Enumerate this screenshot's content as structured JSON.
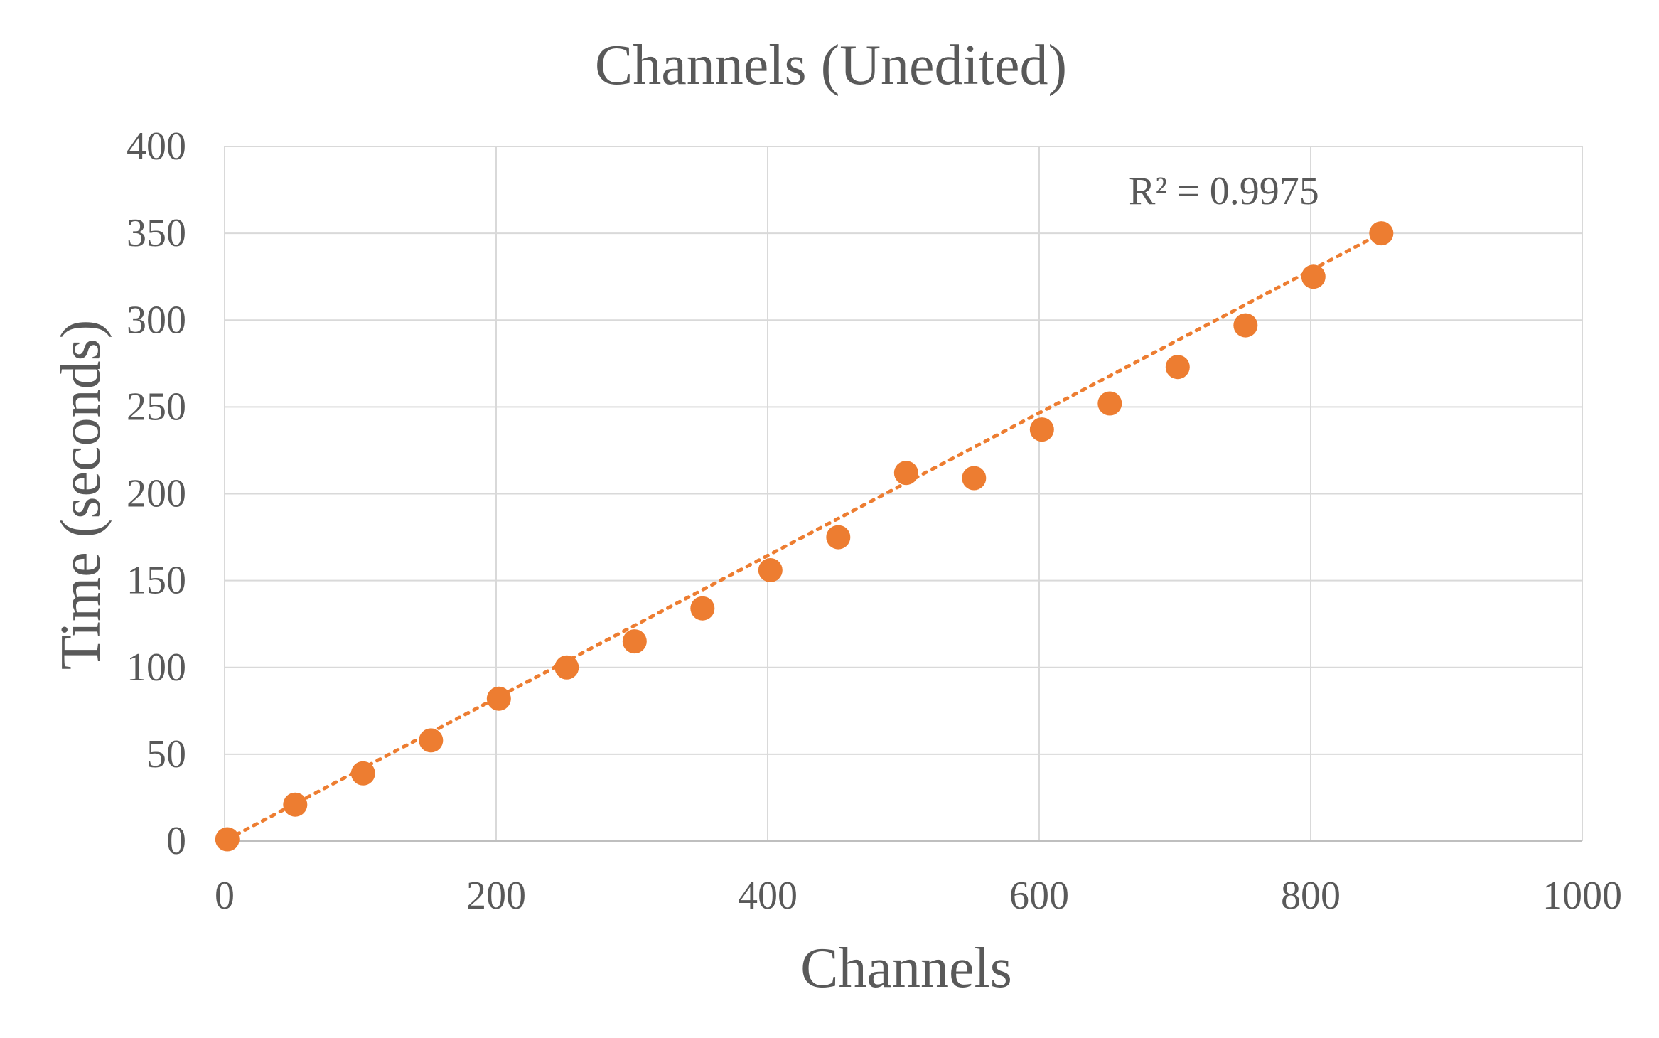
{
  "chart_data": {
    "type": "scatter",
    "title": "Channels (Unedited)",
    "xlabel": "Channels",
    "ylabel": "Time (seconds)",
    "xlim": [
      0,
      1000
    ],
    "ylim": [
      0,
      400
    ],
    "xticks": [
      0,
      200,
      400,
      600,
      800,
      1000
    ],
    "yticks": [
      0,
      50,
      100,
      150,
      200,
      250,
      300,
      350,
      400
    ],
    "grid": true,
    "legend": "none",
    "series": [
      {
        "marker_color": "#ED7D31",
        "points": [
          {
            "x": 2,
            "y": 1
          },
          {
            "x": 52,
            "y": 21
          },
          {
            "x": 102,
            "y": 39
          },
          {
            "x": 152,
            "y": 58
          },
          {
            "x": 202,
            "y": 82
          },
          {
            "x": 252,
            "y": 100
          },
          {
            "x": 302,
            "y": 115
          },
          {
            "x": 352,
            "y": 134
          },
          {
            "x": 402,
            "y": 156
          },
          {
            "x": 452,
            "y": 175
          },
          {
            "x": 502,
            "y": 212
          },
          {
            "x": 552,
            "y": 209
          },
          {
            "x": 602,
            "y": 237
          },
          {
            "x": 652,
            "y": 252
          },
          {
            "x": 702,
            "y": 273
          },
          {
            "x": 752,
            "y": 297
          },
          {
            "x": 802,
            "y": 325
          },
          {
            "x": 852,
            "y": 350
          }
        ]
      }
    ],
    "trendline": {
      "type": "linear",
      "style": "dotted",
      "color": "#ED7D31",
      "start": {
        "x": 2,
        "y": 1
      },
      "end": {
        "x": 852,
        "y": 350
      },
      "r_squared_label": "R² = 0.9975"
    },
    "colors": {
      "text": "#595959",
      "grid": "#D9D9D9",
      "axis": "#BFBFBF"
    }
  }
}
